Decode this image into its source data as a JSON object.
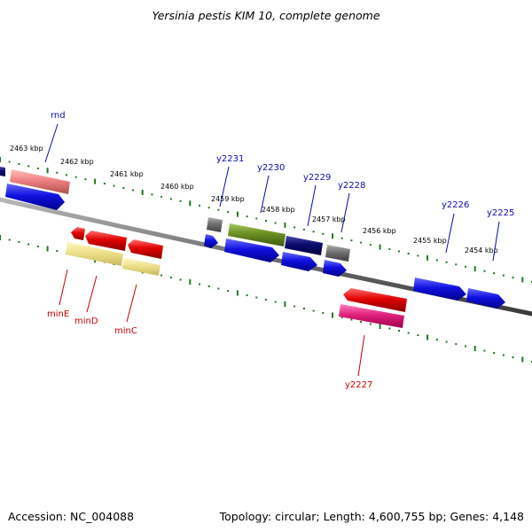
{
  "title": "Yersinia pestis KIM 10, complete genome",
  "accession": "Accession: NC_004088",
  "summary": "Topology: circular; Length: 4,600,755 bp; Genes: 4,148",
  "scale_labels": [
    "2463 kbp",
    "2462 kbp",
    "2461 kbp",
    "2460 kbp",
    "2459 kbp",
    "2458 kbp",
    "2457 kbp",
    "2456 kbp",
    "2455 kbp",
    "2454 kbp"
  ],
  "gene_labels_plus": [
    "rnd",
    "y2231",
    "y2230",
    "y2229",
    "y2228",
    "y2226",
    "y2225"
  ],
  "gene_labels_minus": [
    "minE",
    "minD",
    "minC",
    "y2227"
  ],
  "colors": {
    "backbone": "#7a7a7a",
    "tick": "#1f7a1f",
    "blue": "#1010e0",
    "red": "#e00000",
    "pink": "#f08080",
    "olive": "#6b8e23",
    "navy": "#0a0a6e",
    "gray": "#707070",
    "khaki": "#eee08a",
    "magenta": "#e0207a",
    "label_blue": "#0a0ab4",
    "label_red": "#c80000"
  }
}
